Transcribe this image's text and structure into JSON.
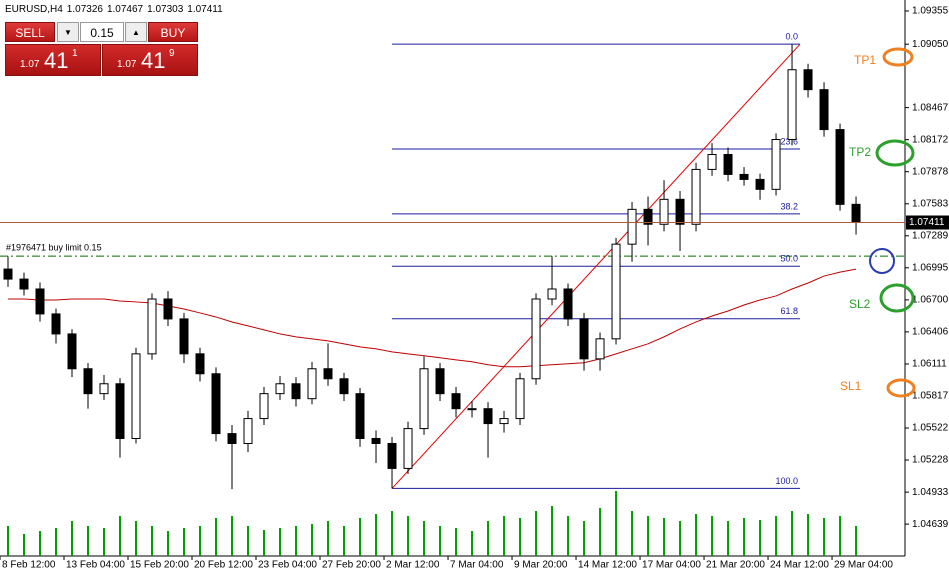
{
  "header": {
    "symbol": "EURUSD,H4",
    "ohlc": [
      1.07326,
      1.07467,
      1.07303,
      1.07411
    ]
  },
  "trade_panel": {
    "sell": "SELL",
    "lot": "0.15",
    "buy": "BUY",
    "bid": {
      "big": "1.07",
      "mid": "41",
      "small": "1"
    },
    "ask": {
      "big": "1.07",
      "mid": "41",
      "small": "9"
    }
  },
  "chart_data": {
    "type": "candlestick",
    "open": [
      1.06983,
      1.06891,
      1.068,
      1.06571,
      1.06387,
      1.06067,
      1.05838,
      1.05929,
      1.05426,
      1.06204,
      1.06708,
      1.06525,
      1.06204,
      1.06021,
      1.05471,
      1.0538,
      1.05609,
      1.05838,
      1.05929,
      1.05792,
      1.06067,
      1.05975,
      1.05838,
      1.05426,
      1.0538,
      1.05151,
      1.05517,
      1.06067,
      1.05838,
      1.057,
      1.057,
      1.05563,
      1.05609,
      1.05975,
      1.06708,
      1.068,
      1.06525,
      1.06158,
      1.06342,
      1.07212,
      1.07532,
      1.07395,
      1.07624,
      1.07395,
      1.07899,
      1.08036,
      1.07853,
      1.07807,
      1.07716,
      1.08174,
      1.08815,
      1.08632,
      1.08265,
      1.07578
    ],
    "high": [
      1.071,
      1.0695,
      1.0686,
      1.0662,
      1.0643,
      1.0612,
      1.0601,
      1.0598,
      1.0626,
      1.0676,
      1.0678,
      1.0658,
      1.0626,
      1.0608,
      1.0555,
      1.0568,
      1.059,
      1.06,
      1.0599,
      1.0613,
      1.063,
      1.0603,
      1.0589,
      1.055,
      1.0544,
      1.0558,
      1.0618,
      1.0612,
      1.059,
      1.0577,
      1.0576,
      1.0568,
      1.0603,
      1.0676,
      1.071,
      1.0685,
      1.0658,
      1.064,
      1.0727,
      1.076,
      1.0765,
      1.078,
      1.077,
      1.0796,
      1.0814,
      1.081,
      1.0792,
      1.0786,
      1.0823,
      1.0905,
      1.0887,
      1.087,
      1.0832,
      1.0765
    ],
    "low": [
      1.0682,
      1.0674,
      1.065,
      1.063,
      1.0599,
      1.057,
      1.0578,
      1.0525,
      1.0538,
      1.0615,
      1.0646,
      1.0612,
      1.0595,
      1.054,
      1.0496,
      1.053,
      1.0555,
      1.0578,
      1.0572,
      1.0574,
      1.0591,
      1.0577,
      1.0535,
      1.052,
      1.04967,
      1.051,
      1.0546,
      1.0577,
      1.0562,
      1.0562,
      1.0525,
      1.0548,
      1.0555,
      1.0592,
      1.0665,
      1.0646,
      1.0605,
      1.0605,
      1.0629,
      1.0705,
      1.072,
      1.0733,
      1.0715,
      1.0733,
      1.0784,
      1.0779,
      1.0775,
      1.0762,
      1.0766,
      1.0812,
      1.0856,
      1.082,
      1.0752,
      1.073
    ],
    "close": [
      1.06891,
      1.068,
      1.06571,
      1.06387,
      1.06067,
      1.05838,
      1.05929,
      1.05426,
      1.06204,
      1.06708,
      1.06525,
      1.06204,
      1.06021,
      1.05471,
      1.0538,
      1.05609,
      1.05838,
      1.05929,
      1.05792,
      1.06067,
      1.05975,
      1.05838,
      1.05426,
      1.0538,
      1.05151,
      1.05517,
      1.06067,
      1.05838,
      1.057,
      1.057,
      1.05563,
      1.05609,
      1.05975,
      1.06708,
      1.068,
      1.06525,
      1.06158,
      1.06342,
      1.07212,
      1.07532,
      1.07395,
      1.07624,
      1.07395,
      1.07899,
      1.08036,
      1.07853,
      1.07807,
      1.07716,
      1.08174,
      1.08815,
      1.08632,
      1.08265,
      1.07578,
      1.07411
    ],
    "volume": [
      30,
      22,
      25,
      28,
      35,
      30,
      28,
      40,
      35,
      30,
      25,
      28,
      30,
      38,
      40,
      30,
      26,
      28,
      30,
      32,
      35,
      30,
      38,
      42,
      45,
      40,
      35,
      30,
      28,
      25,
      35,
      40,
      38,
      45,
      50,
      40,
      35,
      48,
      65,
      45,
      40,
      38,
      35,
      42,
      40,
      35,
      38,
      36,
      40,
      45,
      42,
      38,
      40,
      30
    ],
    "volume_color": "#00a000",
    "candle_color": "#000000",
    "ma": {
      "color": "#c00000",
      "values": [
        1.06708,
        1.06708,
        1.06699,
        1.06699,
        1.06708,
        1.06708,
        1.06708,
        1.0669,
        1.06681,
        1.06671,
        1.06644,
        1.06616,
        1.0658,
        1.06543,
        1.06497,
        1.06461,
        1.06424,
        1.06387,
        1.0636,
        1.06342,
        1.06323,
        1.06296,
        1.06268,
        1.0625,
        1.06222,
        1.06204,
        1.06186,
        1.06168,
        1.06149,
        1.06131,
        1.06104,
        1.06085,
        1.06085,
        1.06094,
        1.06104,
        1.06113,
        1.06122,
        1.06158,
        1.06204,
        1.0625,
        1.06296,
        1.0636,
        1.06433,
        1.06497,
        1.06552,
        1.06598,
        1.06653,
        1.06699,
        1.06736,
        1.068,
        1.06855,
        1.06919,
        1.06955,
        1.06983
      ]
    },
    "xlim": [
      -0.5,
      56.06
    ],
    "xticks": [
      {
        "value": -0.5,
        "label": "8 Feb 12:00"
      },
      {
        "value": 3.5,
        "label": "13 Feb 04:00"
      },
      {
        "value": 7.5,
        "label": "15 Feb 20:00"
      },
      {
        "value": 11.5,
        "label": "20 Feb 12:00"
      },
      {
        "value": 15.5,
        "label": "23 Feb 04:00"
      },
      {
        "value": 19.5,
        "label": "27 Feb 20:00"
      },
      {
        "value": 23.5,
        "label": "2 Mar 12:00"
      },
      {
        "value": 27.5,
        "label": "7 Mar 04:00"
      },
      {
        "value": 31.5,
        "label": "9 Mar 20:00"
      },
      {
        "value": 35.5,
        "label": "14 Mar 12:00"
      },
      {
        "value": 39.5,
        "label": "17 Mar 04:00"
      },
      {
        "value": 43.5,
        "label": "21 Mar 20:00"
      },
      {
        "value": 47.5,
        "label": "24 Mar 12:00"
      },
      {
        "value": 51.5,
        "label": "29 Mar 04:00"
      }
    ],
    "ylim": [
      1.04346,
      1.09456
    ],
    "yticks": [
      1.09355,
      {
        "value": 1.0905,
        "label": "1.09050"
      },
      1.08467,
      1.08172,
      1.07878,
      1.07583,
      1.07289,
      1.06995,
      {
        "value": 1.067,
        "label": "1.06700"
      },
      1.06406,
      1.06111,
      1.05817,
      1.05522,
      1.05228,
      1.04933,
      1.04639
    ],
    "price_line_color": "#b0583a",
    "fibonacci": {
      "color": "#1a1aa0",
      "trend_color": "#e00000",
      "x_range": [
        24,
        49.5
      ],
      "high": 1.0905,
      "low": 1.04967,
      "levels": [
        {
          "value": 0,
          "label": "0.0"
        },
        23.6,
        38.2,
        {
          "value": 50,
          "label": "50.0"
        },
        61.8,
        {
          "value": 100,
          "label": "100.0"
        }
      ]
    },
    "order": {
      "label": "#1976471 buy limit 0.15",
      "price": 1.07102,
      "color": "#007000"
    },
    "annotations": [
      {
        "text": "TP1"
      },
      {
        "text": "TP2"
      },
      {
        "text": "SL2"
      },
      {
        "text": "SL1"
      }
    ]
  }
}
